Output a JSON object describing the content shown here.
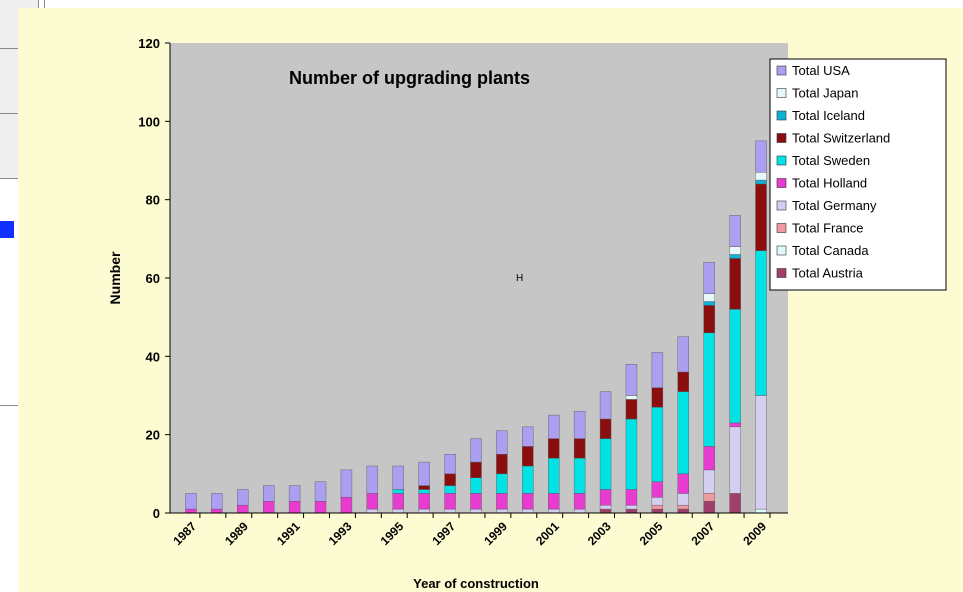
{
  "chart_data": {
    "type": "bar",
    "stacked": true,
    "title": "Number of upgrading plants",
    "xlabel": "Year of construction",
    "ylabel": "Number",
    "ylim": [
      0,
      120
    ],
    "yticks": [
      0,
      20,
      40,
      60,
      80,
      100,
      120
    ],
    "grid": false,
    "legend_position": "right",
    "stray_label": "H",
    "categories": [
      "1987",
      "1988",
      "1989",
      "1990",
      "1991",
      "1992",
      "1993",
      "1994",
      "1995",
      "1996",
      "1997",
      "1998",
      "1999",
      "2000",
      "2001",
      "2002",
      "2003",
      "2004",
      "2005",
      "2006",
      "2007",
      "2008",
      "2009"
    ],
    "tick_labels": [
      "1987",
      "",
      "1989",
      "",
      "1991",
      "",
      "1993",
      "",
      "1995",
      "",
      "1997",
      "",
      "1999",
      "",
      "2001",
      "",
      "2003",
      "",
      "2005",
      "",
      "2007",
      "",
      "2009"
    ],
    "series": [
      {
        "name": "Total Austria",
        "color": "#a0406a",
        "values": [
          0,
          0,
          0,
          0,
          0,
          0,
          0,
          0,
          0,
          0,
          0,
          0,
          0,
          0,
          0,
          0,
          1,
          1,
          1,
          1,
          3,
          5,
          0
        ]
      },
      {
        "name": "Total Canada",
        "color": "#dffafa",
        "values": [
          0,
          0,
          0,
          0,
          0,
          0,
          0,
          0,
          0,
          0,
          0,
          0,
          0,
          0,
          0,
          0,
          0,
          0,
          0,
          0,
          0,
          0,
          1
        ]
      },
      {
        "name": "Total France",
        "color": "#ef9aa0",
        "values": [
          0,
          0,
          0,
          0,
          0,
          0,
          0,
          0,
          0,
          0,
          0,
          0,
          0,
          0,
          0,
          0,
          0,
          0,
          1,
          1,
          2,
          0,
          0
        ]
      },
      {
        "name": "Total Germany",
        "color": "#d4cff0",
        "values": [
          0,
          0,
          0,
          0,
          0,
          0,
          0,
          1,
          1,
          1,
          1,
          1,
          1,
          1,
          1,
          1,
          1,
          1,
          2,
          3,
          6,
          17,
          29
        ]
      },
      {
        "name": "Total Holland",
        "color": "#e83bd0",
        "values": [
          1,
          1,
          2,
          3,
          3,
          3,
          4,
          4,
          4,
          4,
          4,
          4,
          4,
          4,
          4,
          4,
          4,
          4,
          4,
          5,
          6,
          1,
          0
        ]
      },
      {
        "name": "Total Sweden",
        "color": "#00e2e4",
        "values": [
          0,
          0,
          0,
          0,
          0,
          0,
          0,
          0,
          1,
          1,
          2,
          4,
          5,
          7,
          9,
          9,
          13,
          18,
          19,
          21,
          29,
          29,
          37
        ]
      },
      {
        "name": "Total Switzerland",
        "color": "#8a0e0e",
        "values": [
          0,
          0,
          0,
          0,
          0,
          0,
          0,
          0,
          0,
          1,
          3,
          4,
          5,
          5,
          5,
          5,
          5,
          5,
          5,
          5,
          7,
          13,
          17
        ]
      },
      {
        "name": "Total Iceland",
        "color": "#0db0d6",
        "values": [
          0,
          0,
          0,
          0,
          0,
          0,
          0,
          0,
          0,
          0,
          0,
          0,
          0,
          0,
          0,
          0,
          0,
          0,
          0,
          0,
          1,
          1,
          1
        ]
      },
      {
        "name": "Total Japan",
        "color": "#e6f8f8",
        "values": [
          0,
          0,
          0,
          0,
          0,
          0,
          0,
          0,
          0,
          0,
          0,
          0,
          0,
          0,
          0,
          0,
          0,
          1,
          0,
          0,
          2,
          2,
          2
        ]
      },
      {
        "name": "Total  USA",
        "color": "#ab9ff0",
        "values": [
          4,
          4,
          4,
          4,
          4,
          5,
          7,
          7,
          6,
          6,
          5,
          6,
          6,
          5,
          6,
          7,
          7,
          8,
          9,
          9,
          8,
          8,
          8
        ]
      }
    ],
    "legend_order": [
      "Total  USA",
      "Total Japan",
      "Total Iceland",
      "Total Switzerland",
      "Total Sweden",
      "Total Holland",
      "Total Germany",
      "Total France",
      "Total Canada",
      "Total Austria"
    ]
  }
}
